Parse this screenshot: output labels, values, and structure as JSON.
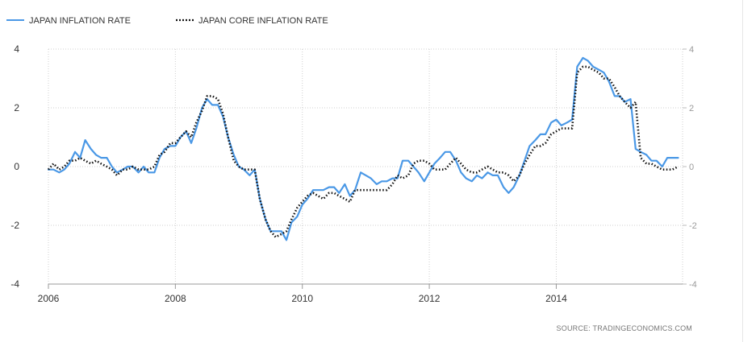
{
  "source": "SOURCE: TRADINGECONOMICS.COM",
  "colors": {
    "inflation": "#4a98e6",
    "core": "#111111"
  },
  "chart_data": {
    "type": "line",
    "legend": [
      "JAPAN INFLATION RATE",
      "JAPAN CORE INFLATION RATE"
    ],
    "legend_position": "top-left",
    "grid": true,
    "xlim": [
      2006.0,
      2015.99
    ],
    "ylim": [
      -4,
      4
    ],
    "x_ticks": [
      2006,
      2008,
      2010,
      2012,
      2014
    ],
    "x_tick_labels": [
      "2006",
      "2008",
      "2010",
      "2012",
      "2014"
    ],
    "y_ticks": [
      4,
      2,
      0,
      -2,
      -4
    ],
    "y_tick_labels": [
      "4",
      "2",
      "0",
      "-2",
      "-4"
    ],
    "series": [
      {
        "name": "JAPAN INFLATION RATE",
        "color": "#4a98e6",
        "style": "solid",
        "x": [
          2006.0,
          2006.08,
          2006.17,
          2006.25,
          2006.33,
          2006.42,
          2006.5,
          2006.58,
          2006.67,
          2006.75,
          2006.83,
          2006.92,
          2007.0,
          2007.08,
          2007.17,
          2007.25,
          2007.33,
          2007.42,
          2007.5,
          2007.58,
          2007.67,
          2007.75,
          2007.83,
          2007.92,
          2008.0,
          2008.08,
          2008.17,
          2008.25,
          2008.33,
          2008.42,
          2008.5,
          2008.58,
          2008.67,
          2008.75,
          2008.83,
          2008.92,
          2009.0,
          2009.08,
          2009.17,
          2009.25,
          2009.33,
          2009.42,
          2009.5,
          2009.58,
          2009.67,
          2009.75,
          2009.83,
          2009.92,
          2010.0,
          2010.08,
          2010.17,
          2010.25,
          2010.33,
          2010.42,
          2010.5,
          2010.58,
          2010.67,
          2010.75,
          2010.83,
          2010.92,
          2011.0,
          2011.08,
          2011.17,
          2011.25,
          2011.33,
          2011.42,
          2011.5,
          2011.58,
          2011.67,
          2011.75,
          2011.83,
          2011.92,
          2012.0,
          2012.08,
          2012.17,
          2012.25,
          2012.33,
          2012.42,
          2012.5,
          2012.58,
          2012.67,
          2012.75,
          2012.83,
          2012.92,
          2013.0,
          2013.08,
          2013.17,
          2013.25,
          2013.33,
          2013.42,
          2013.5,
          2013.58,
          2013.67,
          2013.75,
          2013.83,
          2013.92,
          2014.0,
          2014.08,
          2014.17,
          2014.25,
          2014.33,
          2014.42,
          2014.5,
          2014.58,
          2014.67,
          2014.75,
          2014.83,
          2014.92,
          2015.0,
          2015.08,
          2015.17,
          2015.25,
          2015.33,
          2015.42,
          2015.5,
          2015.58,
          2015.67,
          2015.75,
          2015.83,
          2015.92
        ],
        "y": [
          -0.1,
          -0.1,
          -0.2,
          -0.1,
          0.1,
          0.5,
          0.3,
          0.9,
          0.6,
          0.4,
          0.3,
          0.3,
          0.0,
          -0.2,
          -0.1,
          0.0,
          0.0,
          -0.2,
          0.0,
          -0.2,
          -0.2,
          0.3,
          0.6,
          0.7,
          0.7,
          1.0,
          1.2,
          0.8,
          1.3,
          2.0,
          2.3,
          2.1,
          2.1,
          1.7,
          1.0,
          0.4,
          0.0,
          -0.1,
          -0.3,
          -0.1,
          -1.1,
          -1.8,
          -2.2,
          -2.2,
          -2.2,
          -2.5,
          -1.9,
          -1.7,
          -1.3,
          -1.1,
          -0.8,
          -0.8,
          -0.8,
          -0.7,
          -0.7,
          -0.9,
          -0.6,
          -1.0,
          -0.8,
          -0.2,
          -0.3,
          -0.4,
          -0.6,
          -0.5,
          -0.5,
          -0.4,
          -0.4,
          0.2,
          0.2,
          0.0,
          -0.2,
          -0.5,
          -0.2,
          0.1,
          0.3,
          0.5,
          0.5,
          0.2,
          -0.2,
          -0.4,
          -0.5,
          -0.3,
          -0.4,
          -0.2,
          -0.3,
          -0.3,
          -0.7,
          -0.9,
          -0.7,
          -0.3,
          0.2,
          0.7,
          0.9,
          1.1,
          1.1,
          1.5,
          1.6,
          1.4,
          1.5,
          1.6,
          3.4,
          3.7,
          3.6,
          3.4,
          3.3,
          3.2,
          2.9,
          2.4,
          2.4,
          2.2,
          2.3,
          0.6,
          0.5,
          0.4,
          0.2,
          0.2,
          0.0,
          0.3,
          0.3,
          0.3
        ]
      },
      {
        "name": "JAPAN CORE INFLATION RATE",
        "color": "#111111",
        "style": "dotted",
        "x": [
          2006.0,
          2006.08,
          2006.17,
          2006.25,
          2006.33,
          2006.42,
          2006.5,
          2006.58,
          2006.67,
          2006.75,
          2006.83,
          2006.92,
          2007.0,
          2007.08,
          2007.17,
          2007.25,
          2007.33,
          2007.42,
          2007.5,
          2007.58,
          2007.67,
          2007.75,
          2007.83,
          2007.92,
          2008.0,
          2008.08,
          2008.17,
          2008.25,
          2008.33,
          2008.42,
          2008.5,
          2008.58,
          2008.67,
          2008.75,
          2008.83,
          2008.92,
          2009.0,
          2009.08,
          2009.17,
          2009.25,
          2009.33,
          2009.42,
          2009.5,
          2009.58,
          2009.67,
          2009.75,
          2009.83,
          2009.92,
          2010.0,
          2010.08,
          2010.17,
          2010.25,
          2010.33,
          2010.42,
          2010.5,
          2010.58,
          2010.67,
          2010.75,
          2010.83,
          2010.92,
          2011.0,
          2011.08,
          2011.17,
          2011.25,
          2011.33,
          2011.42,
          2011.5,
          2011.58,
          2011.67,
          2011.75,
          2011.83,
          2011.92,
          2012.0,
          2012.08,
          2012.17,
          2012.25,
          2012.33,
          2012.42,
          2012.5,
          2012.58,
          2012.67,
          2012.75,
          2012.83,
          2012.92,
          2013.0,
          2013.08,
          2013.17,
          2013.25,
          2013.33,
          2013.42,
          2013.5,
          2013.58,
          2013.67,
          2013.75,
          2013.83,
          2013.92,
          2014.0,
          2014.08,
          2014.17,
          2014.25,
          2014.33,
          2014.42,
          2014.5,
          2014.58,
          2014.67,
          2014.75,
          2014.83,
          2014.92,
          2015.0,
          2015.08,
          2015.17,
          2015.25,
          2015.33,
          2015.42,
          2015.5,
          2015.58,
          2015.67,
          2015.75,
          2015.83,
          2015.92
        ],
        "y": [
          -0.1,
          0.1,
          -0.1,
          0.0,
          0.2,
          0.2,
          0.3,
          0.2,
          0.1,
          0.2,
          0.1,
          0.0,
          -0.1,
          -0.3,
          -0.1,
          -0.1,
          0.0,
          -0.1,
          -0.1,
          -0.1,
          0.0,
          0.4,
          0.5,
          0.8,
          0.8,
          1.0,
          1.2,
          1.0,
          1.5,
          1.9,
          2.4,
          2.4,
          2.3,
          1.8,
          1.0,
          0.2,
          0.0,
          -0.1,
          -0.1,
          -0.1,
          -1.1,
          -1.8,
          -2.2,
          -2.4,
          -2.3,
          -2.2,
          -1.8,
          -1.4,
          -1.2,
          -1.0,
          -0.9,
          -1.0,
          -1.1,
          -0.9,
          -0.9,
          -1.0,
          -1.1,
          -1.2,
          -0.8,
          -0.8,
          -0.8,
          -0.8,
          -0.8,
          -0.8,
          -0.8,
          -0.6,
          -0.3,
          -0.4,
          -0.3,
          0.1,
          0.2,
          0.2,
          0.1,
          -0.1,
          -0.1,
          -0.1,
          0.1,
          0.3,
          0.1,
          -0.1,
          -0.2,
          -0.2,
          -0.1,
          0.0,
          -0.1,
          -0.2,
          -0.2,
          -0.3,
          -0.5,
          -0.3,
          0.1,
          0.4,
          0.7,
          0.7,
          0.8,
          1.1,
          1.2,
          1.3,
          1.3,
          1.3,
          3.2,
          3.4,
          3.4,
          3.3,
          3.2,
          3.0,
          3.0,
          2.7,
          2.4,
          2.2,
          2.0,
          2.2,
          0.3,
          0.1,
          0.1,
          0.0,
          -0.1,
          -0.1,
          -0.1,
          0.0
        ]
      }
    ]
  }
}
